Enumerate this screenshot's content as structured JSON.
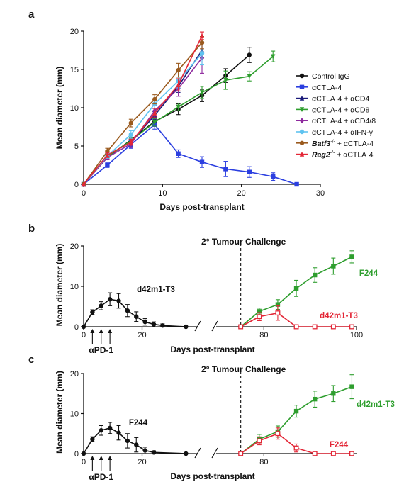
{
  "chart_data": [
    {
      "panel": "a",
      "type": "line",
      "xlabel": "Days post-transplant",
      "ylabel": "Mean diameter (mm)",
      "xlim": [
        0,
        30
      ],
      "ylim": [
        0,
        20
      ],
      "xticks": [
        0,
        10,
        20,
        30
      ],
      "yticks": [
        0,
        5,
        10,
        15,
        20
      ],
      "legend_position": "right",
      "series": [
        {
          "name": "Control IgG",
          "color": "#111111",
          "marker": "circle",
          "x": [
            0,
            3,
            6,
            9,
            12,
            15,
            18,
            21
          ],
          "y": [
            0,
            3.5,
            5.8,
            8.2,
            9.8,
            11.6,
            14.2,
            16.9
          ],
          "err": [
            0,
            0.3,
            0.5,
            0.6,
            0.7,
            0.8,
            0.9,
            1.0
          ]
        },
        {
          "name": "αCTLA-4",
          "color": "#2b3fe0",
          "marker": "square",
          "x": [
            0,
            3,
            6,
            9,
            12,
            15,
            18,
            21,
            24,
            27
          ],
          "y": [
            0,
            2.5,
            5.2,
            7.8,
            4.0,
            2.9,
            2.0,
            1.6,
            1.0,
            0
          ],
          "err": [
            0,
            0.3,
            0.5,
            0.6,
            0.5,
            0.7,
            1.0,
            0.7,
            0.5,
            0
          ]
        },
        {
          "name": "αCTLA-4 + αCD4",
          "color": "#1a1a7a",
          "marker": "triangle",
          "x": [
            0,
            3,
            6,
            9,
            12,
            15
          ],
          "y": [
            0,
            3.8,
            5.5,
            9.0,
            12.8,
            17.5
          ],
          "err": [
            0,
            0.3,
            0.4,
            0.5,
            0.8,
            1.0
          ]
        },
        {
          "name": "αCTLA-4 + αCD8",
          "color": "#2e9e2e",
          "marker": "triangle-down",
          "x": [
            0,
            3,
            6,
            9,
            12,
            15,
            18,
            21,
            24
          ],
          "y": [
            0,
            3.6,
            5.7,
            8.1,
            10.1,
            12.0,
            13.6,
            14.1,
            16.7
          ],
          "err": [
            0,
            0.3,
            0.4,
            0.5,
            0.5,
            0.8,
            1.2,
            0.6,
            0.7
          ]
        },
        {
          "name": "αCTLA-4 + αCD4/8",
          "color": "#8e2a9e",
          "marker": "diamond",
          "x": [
            0,
            3,
            6,
            9,
            12,
            15
          ],
          "y": [
            0,
            3.5,
            5.3,
            9.6,
            12.5,
            16.5
          ],
          "err": [
            0,
            0.3,
            0.5,
            0.7,
            1.0,
            2.0
          ]
        },
        {
          "name": "αCTLA-4 + αIFN-γ",
          "color": "#5fc3f0",
          "marker": "circle",
          "x": [
            0,
            3,
            6,
            9,
            12,
            15
          ],
          "y": [
            0,
            3.7,
            6.5,
            10.5,
            13.5,
            17.1
          ],
          "err": [
            0,
            0.3,
            0.5,
            0.6,
            0.9,
            1.5
          ]
        },
        {
          "name": "Batf3 + αCTLA-4",
          "color": "#9a5a1e",
          "marker": "circle",
          "x": [
            0,
            3,
            6,
            9,
            12,
            15
          ],
          "y": [
            0,
            4.3,
            8.0,
            11.1,
            14.9,
            18.5
          ],
          "err": [
            0,
            0.4,
            0.5,
            0.6,
            0.9,
            0.8
          ]
        },
        {
          "name": "Rag2 + αCTLA-4",
          "color": "#e32636",
          "marker": "triangle",
          "x": [
            0,
            3,
            6,
            9,
            12,
            15
          ],
          "y": [
            0,
            3.8,
            5.5,
            9.3,
            13.0,
            19.4
          ],
          "err": [
            0,
            0.3,
            0.4,
            0.6,
            0.8,
            0.5
          ]
        }
      ]
    },
    {
      "panel": "b",
      "type": "line",
      "xlabel": "Days post-transplant",
      "ylabel": "Mean diameter (mm)",
      "ylim": [
        0,
        20
      ],
      "yticks": [
        0,
        10,
        20
      ],
      "xticks": [
        0,
        20,
        80,
        100
      ],
      "annotation": "2° Tumour Challenge",
      "treatment_label": "αPD-1",
      "treatment_days": [
        3,
        6,
        9
      ],
      "challenge_day": 75,
      "series": [
        {
          "name": "d42m1-T3",
          "color": "#111111",
          "marker": "circle",
          "label_color": "#111111",
          "x": [
            0,
            3,
            6,
            9,
            12,
            15,
            18,
            21,
            24,
            27,
            35
          ],
          "y": [
            0,
            3.6,
            5.2,
            6.8,
            6.4,
            4.0,
            2.5,
            1.2,
            0.6,
            0.3,
            0
          ],
          "err": [
            0,
            0.6,
            1.0,
            1.6,
            1.8,
            1.5,
            1.2,
            0.8,
            0.6,
            0.4,
            0
          ]
        },
        {
          "name": "F244",
          "color": "#2e9e2e",
          "marker": "square",
          "label_color": "#2e9e2e",
          "x": [
            75,
            79,
            83,
            87,
            91,
            95,
            99
          ],
          "y": [
            0,
            3.8,
            5.5,
            9.5,
            12.8,
            15.0,
            17.3
          ],
          "err": [
            0,
            0.8,
            1.2,
            2.0,
            1.8,
            2.0,
            1.5
          ]
        },
        {
          "name": "d42m1-T3",
          "color": "#e32636",
          "marker": "square-open",
          "label_color": "#e32636",
          "x": [
            75,
            79,
            83,
            87,
            91,
            95,
            99
          ],
          "y": [
            0,
            2.5,
            3.4,
            0,
            0,
            0,
            0
          ],
          "err": [
            0,
            1.0,
            1.8,
            0,
            0,
            0,
            0
          ]
        }
      ]
    },
    {
      "panel": "c",
      "type": "line",
      "xlabel": "Days post-transplant",
      "ylabel": "Mean diameter (mm)",
      "ylim": [
        0,
        20
      ],
      "yticks": [
        0,
        10,
        20
      ],
      "xticks": [
        0,
        20,
        80
      ],
      "annotation": "2° Tumour Challenge",
      "treatment_label": "αPD-1",
      "treatment_days": [
        3,
        6,
        9
      ],
      "challenge_day": 75,
      "series": [
        {
          "name": "F244",
          "color": "#111111",
          "marker": "circle",
          "label_color": "#111111",
          "x": [
            0,
            3,
            6,
            9,
            12,
            15,
            18,
            21,
            24,
            35
          ],
          "y": [
            0,
            3.6,
            5.8,
            6.4,
            5.2,
            3.2,
            2.2,
            0.8,
            0.3,
            0
          ],
          "err": [
            0,
            0.6,
            1.2,
            1.4,
            1.8,
            1.8,
            1.8,
            0.8,
            0.4,
            0
          ]
        },
        {
          "name": "d42m1-T3",
          "color": "#2e9e2e",
          "marker": "square",
          "label_color": "#2e9e2e",
          "x": [
            75,
            79,
            83,
            87,
            91,
            95,
            99
          ],
          "y": [
            0,
            3.6,
            5.5,
            10.6,
            13.6,
            15.0,
            16.7
          ],
          "err": [
            0,
            1.2,
            1.4,
            1.5,
            2.0,
            2.0,
            3.0
          ]
        },
        {
          "name": "F244",
          "color": "#e32636",
          "marker": "square-open",
          "label_color": "#e32636",
          "x": [
            75,
            79,
            83,
            87,
            91,
            95,
            99
          ],
          "y": [
            0,
            3.2,
            5.0,
            1.4,
            0,
            0,
            0
          ],
          "err": [
            0,
            1.0,
            1.4,
            1.0,
            0,
            0,
            0
          ]
        }
      ]
    }
  ],
  "labels": {
    "panel_a": "a",
    "panel_b": "b",
    "panel_c": "c",
    "legend": [
      "Control IgG",
      "αCTLA-4",
      "αCTLA-4 + αCD4",
      "αCTLA-4 + αCD8",
      "αCTLA-4 + αCD4/8",
      "αCTLA-4 + αIFN-γ",
      "Batf3",
      "-/-",
      " + αCTLA-4",
      "Rag2",
      "-/-",
      " + αCTLA-4"
    ]
  }
}
